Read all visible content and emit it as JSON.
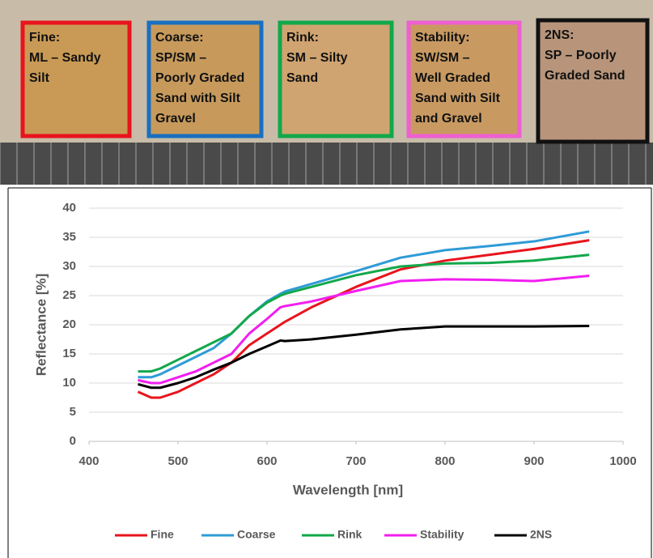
{
  "panels": [
    {
      "color": "#e8141c",
      "lines": [
        "Fine:",
        "ML – Sandy",
        "Silt"
      ]
    },
    {
      "color": "#1a6fc0",
      "lines": [
        "Coarse:",
        "SP/SM –",
        "Poorly Graded",
        "Sand with Silt",
        "Gravel"
      ]
    },
    {
      "color": "#12a84a",
      "lines": [
        "Rink:",
        "SM – Silty",
        "Sand"
      ]
    },
    {
      "color": "#ee5fd0",
      "lines": [
        "Stability:",
        "SW/SM –",
        "Well Graded",
        "Sand with Silt",
        "and Gravel"
      ]
    },
    {
      "color": "#111111",
      "lines": [
        "2NS:",
        "SP – Poorly",
        "Graded Sand"
      ]
    }
  ],
  "chart_data": {
    "type": "line",
    "xlabel": "Wavelength [nm]",
    "ylabel": "Reflectance [%]",
    "x": [
      455,
      470,
      480,
      500,
      520,
      540,
      560,
      580,
      600,
      615,
      620,
      650,
      700,
      750,
      800,
      850,
      900,
      962
    ],
    "series": [
      {
        "name": "Fine",
        "color": "#e8141c",
        "values": [
          8.5,
          7.5,
          7.5,
          8.5,
          10,
          11.5,
          13.5,
          16.5,
          18.5,
          20,
          20.5,
          23,
          26.5,
          29.5,
          31,
          32,
          33,
          34.5
        ]
      },
      {
        "name": "Coarse",
        "color": "#2e9bd6",
        "values": [
          11,
          11,
          11.5,
          13,
          14.5,
          16,
          18.5,
          21.5,
          24,
          25.3,
          25.7,
          27,
          29.2,
          31.5,
          32.8,
          33.5,
          34.3,
          36
        ]
      },
      {
        "name": "Rink",
        "color": "#12a84a",
        "values": [
          12,
          12,
          12.5,
          14,
          15.5,
          17,
          18.5,
          21.5,
          23.8,
          25,
          25.3,
          26.5,
          28.5,
          30,
          30.5,
          30.6,
          31,
          32
        ]
      },
      {
        "name": "Stability",
        "color": "#f21ef0",
        "values": [
          10.5,
          10,
          10,
          11,
          12,
          13.5,
          15,
          18.5,
          21,
          23,
          23.2,
          24,
          25.8,
          27.5,
          27.8,
          27.7,
          27.5,
          28.4
        ]
      },
      {
        "name": "2NS",
        "color": "#000000",
        "values": [
          9.8,
          9.2,
          9.2,
          10,
          11,
          12.3,
          13.5,
          15,
          16.3,
          17.3,
          17.2,
          17.5,
          18.3,
          19.2,
          19.7,
          19.7,
          19.7,
          19.8
        ]
      }
    ],
    "xlim": [
      400,
      1000
    ],
    "xticks": [
      400,
      500,
      600,
      700,
      800,
      900,
      1000
    ],
    "ylim": [
      0,
      40
    ],
    "yticks": [
      0,
      5,
      10,
      15,
      20,
      25,
      30,
      35,
      40
    ],
    "grid": true,
    "legend": "bottom"
  }
}
